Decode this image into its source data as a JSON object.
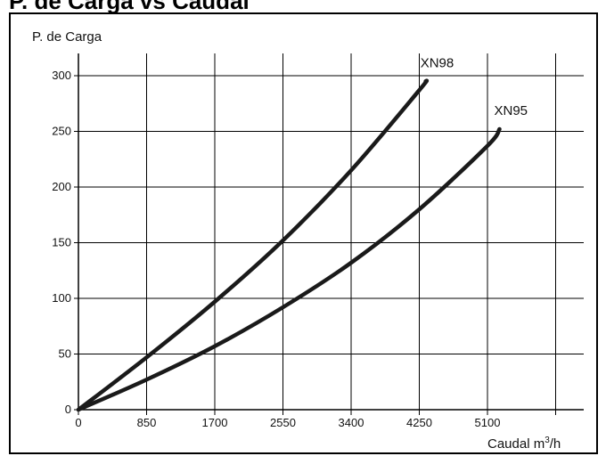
{
  "title": "P. de Carga vs Caudal",
  "chart_data": {
    "type": "line",
    "ylabel": "P. de Carga",
    "xlabel": "Caudal m³/h",
    "xlabel_base": "Caudal m",
    "xlabel_sup": "3",
    "xlabel_tail": "/h",
    "x_ticks": [
      "0",
      "850",
      "1700",
      "2550",
      "3400",
      "4250",
      "5100"
    ],
    "y_ticks": [
      "0",
      "50",
      "100",
      "150",
      "200",
      "250",
      "300"
    ],
    "xlim": [
      0,
      6300
    ],
    "ylim": [
      0,
      320
    ],
    "grid": true,
    "series": [
      {
        "name": "XN98",
        "x": [
          0,
          850,
          1700,
          2550,
          3400,
          4250,
          4330
        ],
        "y": [
          0,
          47,
          97,
          152,
          215,
          287,
          295
        ]
      },
      {
        "name": "XN95",
        "x": [
          0,
          850,
          1700,
          2550,
          3400,
          4250,
          5100,
          5250
        ],
        "y": [
          0,
          27,
          57,
          92,
          132,
          180,
          237,
          252
        ]
      }
    ],
    "colors": {
      "line": "#1a1a1a",
      "grid": "#000000"
    }
  }
}
